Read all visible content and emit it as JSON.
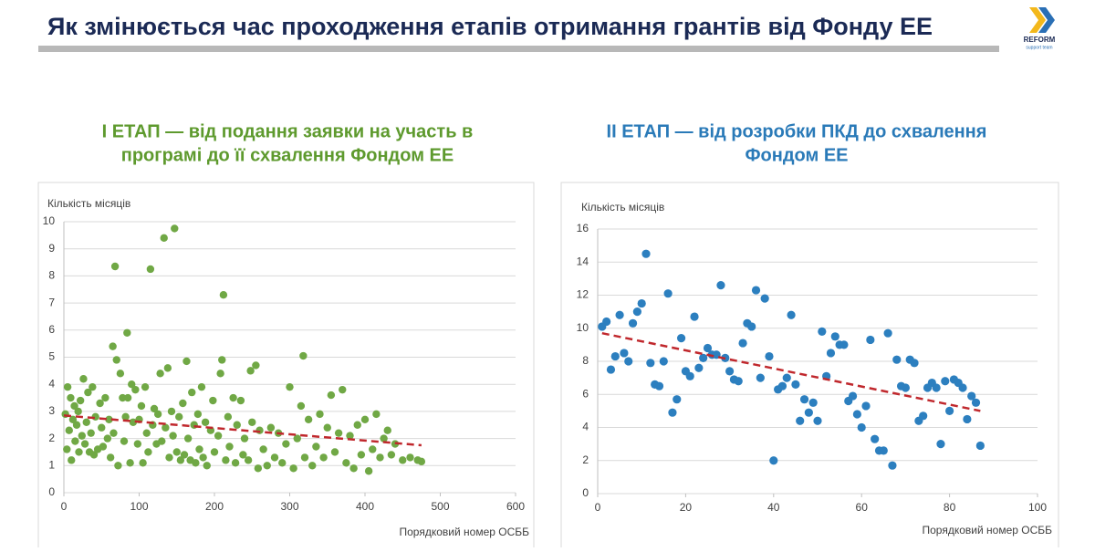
{
  "header": {
    "title": "Як змінюється час проходження етапів отримання грантів від Фонду ЕЕ"
  },
  "logo": {
    "name": "REFORM",
    "tagline": "support team"
  },
  "chart_data": [
    {
      "type": "scatter",
      "title": [
        "І ЕТАП — від подання заявки на участь в",
        "програмі  до її схвалення Фондом ЕЕ"
      ],
      "title_color": "#5e9a2e",
      "y_label": "Кількість місяців",
      "x_label": "Порядковий номер ОСББ",
      "color": "#70a845",
      "x": [
        2,
        4,
        5,
        7,
        9,
        10,
        12,
        14,
        15,
        17,
        19,
        20,
        22,
        24,
        26,
        28,
        30,
        32,
        34,
        36,
        38,
        40,
        42,
        45,
        48,
        50,
        52,
        55,
        58,
        60,
        62,
        65,
        66,
        68,
        70,
        72,
        75,
        78,
        80,
        82,
        84,
        85,
        88,
        90,
        92,
        95,
        98,
        100,
        103,
        105,
        108,
        110,
        112,
        115,
        118,
        120,
        123,
        125,
        128,
        130,
        133,
        135,
        138,
        140,
        143,
        145,
        147,
        150,
        153,
        155,
        158,
        160,
        163,
        165,
        168,
        170,
        173,
        175,
        178,
        180,
        183,
        185,
        188,
        190,
        195,
        198,
        200,
        205,
        208,
        210,
        212,
        215,
        218,
        220,
        225,
        228,
        230,
        235,
        238,
        240,
        245,
        248,
        250,
        255,
        258,
        260,
        265,
        270,
        275,
        280,
        285,
        290,
        295,
        300,
        305,
        310,
        315,
        318,
        320,
        325,
        330,
        335,
        340,
        345,
        350,
        355,
        360,
        365,
        370,
        375,
        380,
        385,
        390,
        395,
        400,
        405,
        410,
        415,
        420,
        425,
        430,
        435,
        440,
        450,
        460,
        470,
        475
      ],
      "y": [
        2.9,
        1.6,
        3.9,
        2.3,
        3.5,
        1.2,
        2.7,
        3.2,
        1.9,
        2.5,
        3.0,
        1.5,
        3.4,
        2.1,
        4.2,
        1.8,
        2.6,
        3.7,
        1.5,
        2.2,
        3.9,
        1.4,
        2.8,
        1.6,
        3.3,
        2.4,
        1.7,
        3.5,
        2.0,
        2.7,
        1.3,
        5.4,
        2.2,
        8.35,
        4.9,
        1.0,
        4.4,
        3.5,
        1.9,
        2.8,
        5.9,
        3.5,
        1.1,
        4.0,
        2.6,
        3.8,
        1.8,
        2.7,
        3.2,
        1.1,
        3.9,
        2.2,
        1.5,
        8.25,
        2.5,
        3.1,
        1.8,
        2.9,
        4.4,
        1.9,
        9.4,
        2.4,
        4.6,
        1.3,
        3.0,
        2.1,
        9.75,
        1.5,
        2.8,
        1.2,
        3.3,
        1.4,
        4.85,
        2.0,
        1.2,
        3.7,
        2.5,
        1.1,
        2.9,
        1.6,
        3.9,
        1.3,
        2.6,
        1.0,
        2.3,
        3.4,
        1.5,
        2.1,
        4.4,
        4.9,
        7.3,
        1.2,
        2.8,
        1.7,
        3.5,
        1.1,
        2.5,
        3.4,
        1.4,
        2.0,
        1.2,
        4.5,
        2.6,
        4.7,
        0.9,
        2.3,
        1.6,
        1.0,
        2.4,
        1.3,
        2.2,
        1.1,
        1.8,
        3.9,
        0.9,
        2.0,
        3.2,
        5.05,
        1.3,
        2.7,
        1.0,
        1.7,
        2.9,
        1.3,
        2.4,
        3.6,
        1.5,
        2.2,
        3.8,
        1.1,
        2.1,
        0.9,
        2.5,
        1.4,
        2.7,
        0.8,
        1.6,
        2.9,
        1.3,
        2.0,
        2.3,
        1.4,
        1.8,
        1.2,
        1.3,
        1.2,
        1.15
      ],
      "trendline": {
        "x": [
          0,
          475
        ],
        "y": [
          2.85,
          1.75
        ],
        "color": "#c0282d"
      },
      "xlim": [
        0,
        600
      ],
      "xticks": [
        0,
        100,
        200,
        300,
        400,
        500,
        600
      ],
      "ylim": [
        0,
        10
      ],
      "yticks": [
        0,
        1,
        2,
        3,
        4,
        5,
        6,
        7,
        8,
        9,
        10
      ],
      "grid": true
    },
    {
      "type": "scatter",
      "title": [
        "ІІ ЕТАП — від розробки ПКД  до схвалення",
        "Фондом ЕЕ"
      ],
      "title_color": "#2a7ab8",
      "y_label": "Кількість місяців",
      "x_label": "Порядковий номер ОСББ",
      "color": "#2c7fbf",
      "x": [
        1,
        2,
        3,
        4,
        5,
        6,
        7,
        8,
        9,
        10,
        11,
        12,
        13,
        14,
        15,
        16,
        17,
        18,
        19,
        20,
        21,
        22,
        23,
        24,
        25,
        26,
        27,
        28,
        29,
        30,
        31,
        32,
        33,
        34,
        35,
        36,
        37,
        38,
        39,
        40,
        41,
        42,
        43,
        44,
        45,
        46,
        47,
        48,
        49,
        50,
        51,
        52,
        53,
        54,
        55,
        56,
        57,
        58,
        59,
        60,
        61,
        62,
        63,
        64,
        65,
        66,
        67,
        68,
        69,
        70,
        71,
        72,
        73,
        74,
        75,
        76,
        77,
        78,
        79,
        80,
        81,
        82,
        83,
        84,
        85,
        86,
        87
      ],
      "y": [
        10.1,
        10.4,
        7.5,
        8.3,
        10.8,
        8.5,
        8.0,
        10.3,
        11.0,
        11.5,
        14.5,
        7.9,
        6.6,
        6.5,
        8.0,
        12.1,
        4.9,
        5.7,
        9.4,
        7.4,
        7.1,
        10.7,
        7.6,
        8.2,
        8.8,
        8.4,
        8.4,
        12.6,
        8.2,
        7.4,
        6.9,
        6.8,
        9.1,
        10.3,
        10.1,
        12.3,
        7.0,
        11.8,
        8.3,
        2.0,
        6.3,
        6.5,
        7.0,
        10.8,
        6.6,
        4.4,
        5.7,
        4.9,
        5.5,
        4.4,
        9.8,
        7.1,
        8.5,
        9.5,
        9.0,
        9.0,
        5.6,
        5.9,
        4.8,
        4.0,
        5.3,
        9.3,
        3.3,
        2.6,
        2.6,
        9.7,
        1.7,
        8.1,
        6.5,
        6.4,
        8.1,
        7.9,
        4.4,
        4.7,
        6.4,
        6.7,
        6.4,
        3.0,
        6.8,
        5.0,
        6.9,
        6.7,
        6.4,
        4.5,
        5.9,
        5.5,
        2.9
      ],
      "trendline": {
        "x": [
          1,
          87
        ],
        "y": [
          9.7,
          5.0
        ],
        "color": "#c0282d"
      },
      "xlim": [
        0,
        100
      ],
      "xticks": [
        0,
        20,
        40,
        60,
        80,
        100
      ],
      "ylim": [
        0,
        16
      ],
      "yticks": [
        0,
        2,
        4,
        6,
        8,
        10,
        12,
        14,
        16
      ],
      "grid": true
    }
  ]
}
